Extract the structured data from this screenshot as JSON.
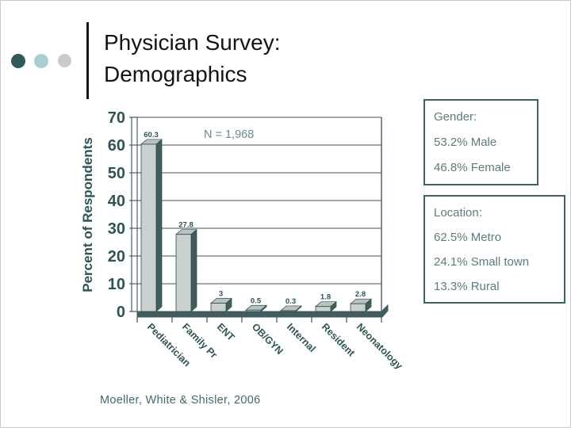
{
  "slide": {
    "title_line1": "Physician Survey:",
    "title_line2": "Demographics",
    "footer": "Moeller, White & Shisler, 2006"
  },
  "decorations": {
    "dot_colors": [
      "#2e5a5a",
      "#a9ced2",
      "#c8cbca"
    ]
  },
  "gender_box": {
    "title": "Gender:",
    "lines": [
      "53.2% Male",
      "46.8% Female"
    ]
  },
  "location_box": {
    "title": "Location:",
    "lines": [
      "62.5% Metro",
      "24.1% Small town",
      "13.3% Rural"
    ]
  },
  "theme": {
    "accent_dark": "#2e5454",
    "box_border": "#3a6363",
    "box_text": "#5b7d7d",
    "title_color": "#141414",
    "footer_color": "#436a6a"
  },
  "chart_data": {
    "type": "bar",
    "style": "3d-column",
    "title": "",
    "annotation": "N = 1,968",
    "xlabel": "",
    "ylabel": "Percent of Respondents",
    "categories": [
      "Pediatrician",
      "Family Pr",
      "ENT",
      "OB/GYN",
      "Internal",
      "Resident",
      "Neonatology"
    ],
    "values": [
      60.3,
      27.8,
      3,
      0.5,
      0.3,
      1.8,
      2.8
    ],
    "ylim": [
      0,
      70
    ],
    "ytick_step": 10,
    "grid": true,
    "legend": false,
    "colors": {
      "bar_front": "#c9d1d0",
      "bar_side": "#415c5c",
      "bar_top": "#b7c4c3",
      "bar_outline": "#2f4a4a",
      "axis_text": "#2e5454",
      "gridline": "#3c5555",
      "floor": "#415c5c",
      "annotation_color": "#6e8a8a"
    }
  }
}
